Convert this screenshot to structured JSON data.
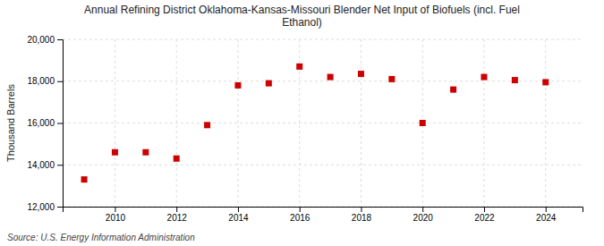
{
  "chart_data": {
    "type": "scatter",
    "title": "Annual Refining District Oklahoma-Kansas-Missouri Blender Net Input of Biofuels (incl. Fuel\nEthanol)",
    "ylabel": "Thousand Barrels",
    "source": "Source: U.S. Energy Information Administration",
    "x": [
      2009,
      2010,
      2011,
      2012,
      2013,
      2014,
      2015,
      2016,
      2017,
      2018,
      2019,
      2020,
      2021,
      2022,
      2023,
      2024
    ],
    "values": [
      13300,
      14600,
      14600,
      14300,
      15900,
      17800,
      17900,
      18700,
      18200,
      18350,
      18100,
      16000,
      17600,
      18200,
      18050,
      17950
    ],
    "color": "#cc0000",
    "marker": "square",
    "xlim": [
      2008.3,
      2025.2
    ],
    "xticks": [
      2010,
      2012,
      2014,
      2016,
      2018,
      2020,
      2022,
      2024
    ],
    "ylim": [
      12000,
      20000
    ],
    "yticks": [
      {
        "value": 12000,
        "label": "12,000"
      },
      {
        "value": 14000,
        "label": "14,000"
      },
      {
        "value": 16000,
        "label": "16,000"
      },
      {
        "value": 18000,
        "label": "18,000"
      },
      {
        "value": 20000,
        "label": "20,000"
      }
    ],
    "grid": true
  }
}
